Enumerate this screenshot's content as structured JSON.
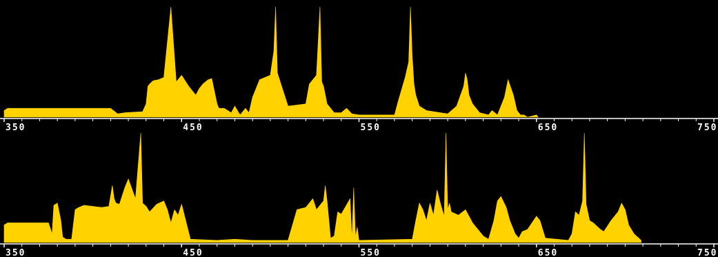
{
  "colors": {
    "background": "#000000",
    "trace": "#FFD200",
    "axis": "#FFFFFF"
  },
  "chart_data": [
    {
      "type": "area",
      "title": "",
      "xlabel": "",
      "ylabel": "",
      "xlim": [
        350,
        750
      ],
      "ylim": [
        0,
        100
      ],
      "grid": false,
      "ticks": [
        350,
        450,
        550,
        650,
        750
      ],
      "tick_labels": [
        "350",
        "450",
        "550",
        "650",
        "750"
      ],
      "minor_tick_step": 10,
      "series": [
        {
          "x": [
            350,
            352,
            410,
            414,
            418,
            428,
            430,
            431,
            432,
            434,
            437,
            440,
            444,
            447,
            450,
            454,
            458,
            460,
            462,
            465,
            467,
            470,
            471,
            474,
            478,
            480,
            483,
            486,
            488,
            490,
            494,
            500,
            502,
            503,
            504,
            506,
            510,
            520,
            522,
            526,
            528,
            529,
            530,
            532,
            536,
            540,
            543,
            546,
            550,
            570,
            572,
            576,
            578,
            579,
            580,
            581,
            582,
            584,
            588,
            600,
            605,
            609,
            610,
            611,
            612,
            614,
            618,
            623,
            625,
            628,
            630,
            632,
            634,
            637,
            639,
            641,
            643,
            645,
            650,
            651
          ],
          "y": [
            6,
            8,
            8,
            3,
            4,
            5,
            12,
            28,
            30,
            33,
            34,
            36,
            100,
            32,
            38,
            28,
            20,
            26,
            30,
            34,
            35,
            12,
            8,
            8,
            4,
            10,
            2,
            8,
            4,
            18,
            34,
            38,
            60,
            100,
            40,
            30,
            10,
            12,
            30,
            38,
            100,
            32,
            28,
            12,
            4,
            4,
            8,
            3,
            2,
            2,
            14,
            36,
            50,
            100,
            55,
            30,
            20,
            10,
            6,
            3,
            10,
            28,
            40,
            34,
            20,
            12,
            4,
            2,
            6,
            2,
            10,
            18,
            34,
            20,
            6,
            2,
            2,
            0,
            2,
            0
          ]
        }
      ]
    },
    {
      "type": "area",
      "title": "",
      "xlabel": "",
      "ylabel": "",
      "xlim": [
        350,
        750
      ],
      "ylim": [
        0,
        100
      ],
      "grid": false,
      "ticks": [
        350,
        450,
        550,
        650,
        750
      ],
      "tick_labels": [
        "350",
        "450",
        "550",
        "650",
        "750"
      ],
      "minor_tick_step": 10,
      "series": [
        {
          "x": [
            350,
            352,
            375,
            377,
            378,
            380,
            382,
            383,
            385,
            388,
            390,
            392,
            395,
            400,
            405,
            409,
            411,
            412,
            413,
            415,
            416,
            418,
            420,
            424,
            427,
            428,
            430,
            432,
            436,
            440,
            442,
            444,
            446,
            448,
            450,
            455,
            470,
            480,
            490,
            510,
            515,
            520,
            524,
            526,
            530,
            531,
            532,
            534,
            536,
            538,
            540,
            545,
            546,
            547,
            548,
            549,
            550,
            580,
            582,
            584,
            586,
            588,
            590,
            592,
            594,
            596,
            598,
            599,
            600,
            601,
            602,
            606,
            610,
            614,
            618,
            620,
            623,
            626,
            628,
            630,
            633,
            635,
            638,
            640,
            642,
            645,
            650,
            652,
            655,
            668,
            670,
            672,
            674,
            676,
            677,
            678,
            680,
            682,
            686,
            688,
            692,
            696,
            698,
            700,
            702,
            705,
            709
          ],
          "y": [
            16,
            18,
            18,
            8,
            34,
            36,
            20,
            5,
            3,
            3,
            30,
            32,
            34,
            33,
            32,
            33,
            52,
            40,
            36,
            35,
            40,
            50,
            58,
            40,
            100,
            36,
            33,
            28,
            35,
            38,
            30,
            18,
            30,
            25,
            35,
            3,
            2,
            3,
            2,
            2,
            30,
            32,
            40,
            30,
            38,
            52,
            38,
            4,
            6,
            28,
            26,
            40,
            3,
            50,
            5,
            14,
            2,
            3,
            20,
            36,
            30,
            20,
            36,
            25,
            48,
            35,
            24,
            100,
            30,
            36,
            28,
            25,
            30,
            18,
            10,
            6,
            3,
            20,
            38,
            42,
            32,
            20,
            8,
            4,
            10,
            12,
            24,
            20,
            4,
            2,
            8,
            28,
            25,
            38,
            100,
            35,
            20,
            18,
            12,
            10,
            20,
            28,
            36,
            30,
            16,
            8,
            2
          ]
        }
      ]
    }
  ]
}
